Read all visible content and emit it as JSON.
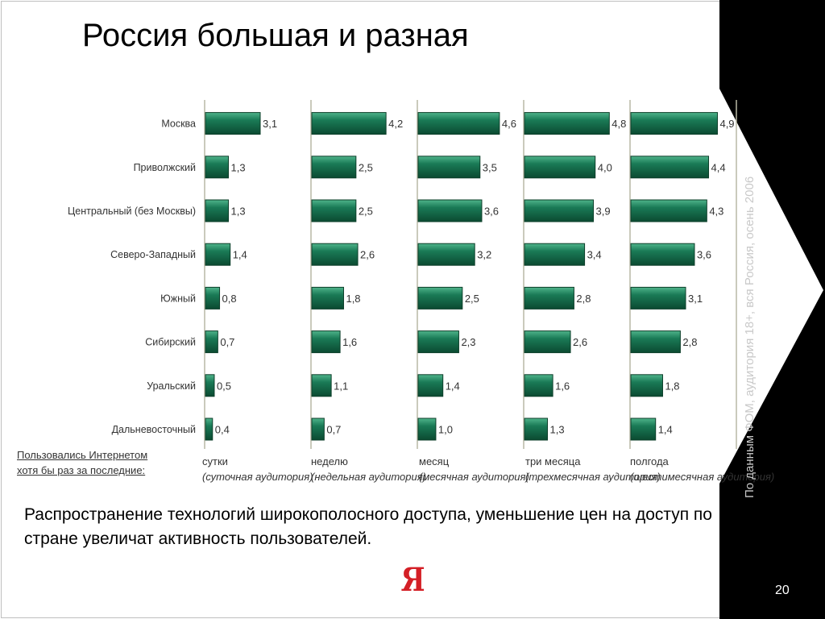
{
  "slide": {
    "title": "Россия большая и разная",
    "side_note": "По данным ФОМ, аудитория 18+, вся Россия, осень 2006",
    "footnote_line1": "Пользовались Интернетом",
    "footnote_line2": "хотя бы раз за последние:",
    "conclusion": "Распространение технологий широкополосного доступа, уменьшение цен на доступ по стране увеличат активность пользователей.",
    "logo": "Я",
    "page_number": "20"
  },
  "colors": {
    "bar_fill": "#1a7a56",
    "bar_edge": "#0d3f2a",
    "divider": "#b9b9a5",
    "dark_band": "#000000"
  },
  "chart_data": {
    "type": "bar",
    "orientation": "horizontal",
    "categories": [
      "Москва",
      "Приволжский",
      "Центральный (без Москвы)",
      "Северо-Западный",
      "Южный",
      "Сибирский",
      "Уральский",
      "Дальневосточный"
    ],
    "series": [
      {
        "name": "сутки",
        "note": "(суточная аудитория)",
        "values": [
          3.1,
          1.3,
          1.3,
          1.4,
          0.8,
          0.7,
          0.5,
          0.4
        ],
        "labels": [
          "3,1",
          "1,3",
          "1,3",
          "1,4",
          "0,8",
          "0,7",
          "0,5",
          "0,4"
        ]
      },
      {
        "name": "неделю",
        "note": "(недельная аудитория)",
        "values": [
          4.2,
          2.5,
          2.5,
          2.6,
          1.8,
          1.6,
          1.1,
          0.7
        ],
        "labels": [
          "4,2",
          "2,5",
          "2,5",
          "2,6",
          "1,8",
          "1,6",
          "1,1",
          "0,7"
        ]
      },
      {
        "name": "месяц",
        "note": "(месячная аудитория)",
        "values": [
          4.6,
          3.5,
          3.6,
          3.2,
          2.5,
          2.3,
          1.4,
          1.0
        ],
        "labels": [
          "4,6",
          "3,5",
          "3,6",
          "3,2",
          "2,5",
          "2,3",
          "1,4",
          "1,0"
        ]
      },
      {
        "name": "три месяца",
        "note": "(трехмесячная аудитория)",
        "values": [
          4.8,
          4.0,
          3.9,
          3.4,
          2.8,
          2.6,
          1.6,
          1.3
        ],
        "labels": [
          "4,8",
          "4,0",
          "3,9",
          "3,4",
          "2,8",
          "2,6",
          "1,6",
          "1,3"
        ]
      },
      {
        "name": "полгода",
        "note": "(шестимесячная аудитория)",
        "values": [
          4.9,
          4.4,
          4.3,
          3.6,
          3.1,
          2.8,
          1.8,
          1.4
        ],
        "labels": [
          "4,9",
          "4,4",
          "4,3",
          "3,6",
          "3,1",
          "2,8",
          "1,8",
          "1,4"
        ]
      }
    ],
    "xlim": [
      0,
      4.9
    ],
    "grid": false,
    "legend": "none"
  }
}
